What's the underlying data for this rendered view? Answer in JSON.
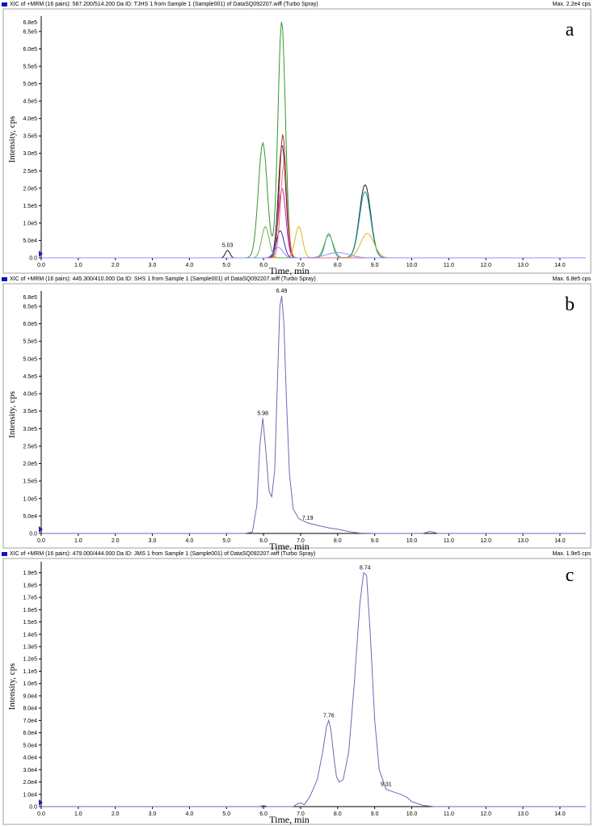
{
  "chart_data": [
    {
      "id": "a",
      "type": "line",
      "panel_label": "a",
      "header": "XIC of +MRM (16 pairs): 587.200/514.200 Da ID: TJHS 1 from Sample 1 (Sample001) of DataSQ092207.wiff (Turbo Spray)",
      "max_label": "Max. 2.2e4 cps",
      "title": "",
      "xlabel": "Time, min",
      "ylabel": "Intensity, cps",
      "xlim": [
        0,
        14.7
      ],
      "ylim": [
        0,
        680000
      ],
      "x_ticks": [
        0.0,
        1.0,
        2.0,
        3.0,
        4.0,
        5.0,
        6.0,
        7.0,
        8.0,
        9.0,
        10.0,
        11.0,
        12.0,
        13.0,
        14.0
      ],
      "x_tick_labels": [
        "0.0",
        "1.0",
        "2.0",
        "3.0",
        "4.0",
        "5.0",
        "6.0",
        "7.0",
        "8.0",
        "9.0",
        "10.0",
        "11.0",
        "12.0",
        "13.0",
        "14.0"
      ],
      "y_ticks": [
        0,
        50000,
        100000,
        150000,
        200000,
        250000,
        300000,
        350000,
        400000,
        450000,
        500000,
        550000,
        600000,
        650000
      ],
      "y_tick_labels": [
        "0.0",
        "5.0e4",
        "1.0e5",
        "1.5e5",
        "2.0e5",
        "2.5e5",
        "3.0e5",
        "3.5e5",
        "4.0e5",
        "4.5e5",
        "5.0e5",
        "5.5e5",
        "6.0e5",
        "6.5e5"
      ],
      "top_label": "6.8e5",
      "peak_labels": [
        {
          "x": 5.03,
          "y": 22000,
          "text": "5.03"
        }
      ],
      "series": [
        {
          "color": "#2e9a2e",
          "peaks": [
            [
              5.98,
              330000,
              0.12
            ],
            [
              6.49,
              680000,
              0.1
            ]
          ]
        },
        {
          "color": "#222222",
          "peaks": [
            [
              6.5,
              325000,
              0.1
            ],
            [
              8.74,
              210000,
              0.15
            ],
            [
              5.03,
              22000,
              0.06
            ]
          ]
        },
        {
          "color": "#1aa0a0",
          "peaks": [
            [
              8.74,
              190000,
              0.15
            ],
            [
              7.76,
              70000,
              0.1
            ]
          ]
        },
        {
          "color": "#c020c0",
          "peaks": [
            [
              6.5,
              200000,
              0.1
            ]
          ]
        },
        {
          "color": "#b03030",
          "peaks": [
            [
              6.52,
              355000,
              0.09
            ]
          ]
        },
        {
          "color": "#d4b820",
          "peaks": [
            [
              6.95,
              90000,
              0.1
            ],
            [
              8.8,
              70000,
              0.18
            ]
          ]
        },
        {
          "color": "#6ab04c",
          "peaks": [
            [
              7.76,
              65000,
              0.12
            ],
            [
              6.05,
              90000,
              0.1
            ]
          ]
        },
        {
          "color": "#3030c0",
          "peaks": [
            [
              6.45,
              78000,
              0.1
            ]
          ]
        },
        {
          "color": "#e07070",
          "peaks": [
            [
              6.55,
              270000,
              0.09
            ]
          ]
        },
        {
          "color": "#9090ff",
          "peaks": [
            [
              6.4,
              30000,
              0.12
            ],
            [
              8.0,
              15000,
              0.3
            ]
          ]
        }
      ]
    },
    {
      "id": "b",
      "type": "line",
      "panel_label": "b",
      "header": "XIC of +MRM (16 pairs): 445.300/410.000 Da ID: SHS 1 from Sample 1 (Sample001) of DataSQ092207.wiff (Turbo Spray)",
      "max_label": "Max. 6.8e5 cps",
      "title": "",
      "xlabel": "Time, min",
      "ylabel": "Intensity, cps",
      "xlim": [
        0,
        14.7
      ],
      "ylim": [
        0,
        680000
      ],
      "x_ticks": [
        0.0,
        1.0,
        2.0,
        3.0,
        4.0,
        5.0,
        6.0,
        7.0,
        8.0,
        9.0,
        10.0,
        11.0,
        12.0,
        13.0,
        14.0
      ],
      "x_tick_labels": [
        "0.0",
        "1.0",
        "2.0",
        "3.0",
        "4.0",
        "5.0",
        "6.0",
        "7.0",
        "8.0",
        "9.0",
        "10.0",
        "11.0",
        "12.0",
        "13.0",
        "14.0"
      ],
      "y_ticks": [
        0,
        50000,
        100000,
        150000,
        200000,
        250000,
        300000,
        350000,
        400000,
        450000,
        500000,
        550000,
        600000,
        650000
      ],
      "y_tick_labels": [
        "0.0",
        "5.0e4",
        "1.0e5",
        "1.5e5",
        "2.0e5",
        "2.5e5",
        "3.0e5",
        "3.5e5",
        "4.0e5",
        "4.5e5",
        "5.0e5",
        "5.5e5",
        "6.0e5",
        "6.5e5"
      ],
      "top_label": "6.8e5",
      "peak_labels": [
        {
          "x": 5.98,
          "y": 330000,
          "text": "5.98"
        },
        {
          "x": 6.49,
          "y": 680000,
          "text": "6.49"
        },
        {
          "x": 7.19,
          "y": 30000,
          "text": "7.19"
        }
      ],
      "series": [
        {
          "color": "#6a6ab8",
          "points": [
            [
              0,
              0
            ],
            [
              5.5,
              0
            ],
            [
              5.7,
              4000
            ],
            [
              5.82,
              80000
            ],
            [
              5.9,
              250000
            ],
            [
              5.98,
              330000
            ],
            [
              6.05,
              250000
            ],
            [
              6.15,
              120000
            ],
            [
              6.22,
              105000
            ],
            [
              6.3,
              180000
            ],
            [
              6.38,
              450000
            ],
            [
              6.44,
              650000
            ],
            [
              6.49,
              680000
            ],
            [
              6.55,
              600000
            ],
            [
              6.62,
              380000
            ],
            [
              6.7,
              170000
            ],
            [
              6.8,
              70000
            ],
            [
              6.95,
              42000
            ],
            [
              7.19,
              30000
            ],
            [
              7.5,
              22000
            ],
            [
              7.8,
              15000
            ],
            [
              8.0,
              12000
            ],
            [
              8.3,
              5000
            ],
            [
              8.6,
              1000
            ],
            [
              9.0,
              0
            ],
            [
              10.3,
              0
            ],
            [
              10.5,
              6000
            ],
            [
              10.7,
              0
            ],
            [
              14.7,
              0
            ]
          ]
        }
      ]
    },
    {
      "id": "c",
      "type": "line",
      "panel_label": "c",
      "header": "XIC of +MRM (16 pairs): 479.000/444.000 Da ID: JMS 1 from Sample 1 (Sample001) of DataSQ092207.wiff (Turbo Spray)",
      "max_label": "Max. 1.9e5 cps",
      "title": "",
      "xlabel": "Time, min",
      "ylabel": "Intensity, cps",
      "xlim": [
        0,
        14.7
      ],
      "ylim": [
        0,
        195000
      ],
      "x_ticks": [
        0.0,
        1.0,
        2.0,
        3.0,
        4.0,
        5.0,
        6.0,
        7.0,
        8.0,
        9.0,
        10.0,
        11.0,
        12.0,
        13.0,
        14.0
      ],
      "x_tick_labels": [
        "0.0",
        "1.0",
        "2.0",
        "3.0",
        "4.0",
        "5.0",
        "6.0",
        "7.0",
        "8.0",
        "9.0",
        "10.0",
        "11.0",
        "12.0",
        "13.0",
        "14.0"
      ],
      "y_ticks": [
        0,
        10000,
        20000,
        30000,
        40000,
        50000,
        60000,
        70000,
        80000,
        90000,
        100000,
        110000,
        120000,
        130000,
        140000,
        150000,
        160000,
        170000,
        180000,
        190000
      ],
      "y_tick_labels": [
        "0.0",
        "1.0e4",
        "2.0e4",
        "3.0e4",
        "4.0e4",
        "5.0e4",
        "6.0e4",
        "7.0e4",
        "8.0e4",
        "9.0e4",
        "1.0e5",
        "1.1e5",
        "1.2e5",
        "1.3e5",
        "1.4e5",
        "1.5e5",
        "1.6e5",
        "1.7e5",
        "1.8e5",
        "1.9e5"
      ],
      "top_label": "",
      "peak_labels": [
        {
          "x": 7.76,
          "y": 70000,
          "text": "7.76"
        },
        {
          "x": 8.74,
          "y": 190000,
          "text": "8.74"
        },
        {
          "x": 9.31,
          "y": 14000,
          "text": "9.31"
        }
      ],
      "series": [
        {
          "color": "#6a6ab8",
          "points": [
            [
              0,
              0
            ],
            [
              5.9,
              0
            ],
            [
              6.0,
              1000
            ],
            [
              6.1,
              0
            ],
            [
              6.8,
              0
            ],
            [
              6.9,
              2000
            ],
            [
              7.0,
              3000
            ],
            [
              7.1,
              1500
            ],
            [
              7.25,
              8000
            ],
            [
              7.45,
              22000
            ],
            [
              7.6,
              45000
            ],
            [
              7.7,
              65000
            ],
            [
              7.76,
              70000
            ],
            [
              7.82,
              62000
            ],
            [
              7.9,
              40000
            ],
            [
              7.97,
              24000
            ],
            [
              8.05,
              20000
            ],
            [
              8.15,
              22000
            ],
            [
              8.3,
              45000
            ],
            [
              8.45,
              100000
            ],
            [
              8.6,
              165000
            ],
            [
              8.7,
              190000
            ],
            [
              8.78,
              188000
            ],
            [
              8.88,
              140000
            ],
            [
              9.0,
              70000
            ],
            [
              9.12,
              30000
            ],
            [
              9.31,
              14000
            ],
            [
              9.5,
              12000
            ],
            [
              9.7,
              10000
            ],
            [
              9.85,
              8000
            ],
            [
              10.0,
              4000
            ],
            [
              10.3,
              1000
            ],
            [
              10.6,
              0
            ],
            [
              14.7,
              0
            ]
          ]
        }
      ]
    }
  ]
}
